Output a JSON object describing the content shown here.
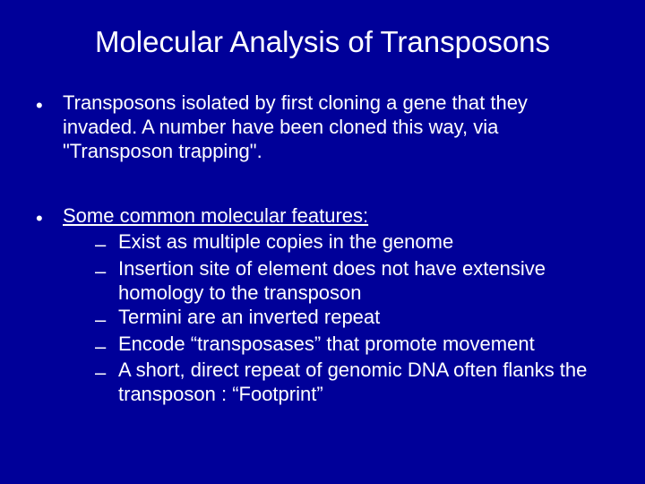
{
  "background_color": "#000099",
  "text_color": "#ffffff",
  "font_family": "Arial, Helvetica, sans-serif",
  "title": "Molecular Analysis of Transposons",
  "bullet1": "Transposons isolated by first cloning a gene that they invaded. A number have been cloned this way, via \"Transposon trapping\".",
  "features_header": "Some common molecular features:",
  "features": {
    "f1": "Exist as multiple copies in the genome",
    "f2": "Insertion site of element does not have extensive homology to the transposon",
    "f3": "Termini are an inverted repeat",
    "f4": "Encode “transposases” that promote movement",
    "f5": "A short, direct repeat of genomic DNA often flanks the transposon : “Footprint”"
  }
}
